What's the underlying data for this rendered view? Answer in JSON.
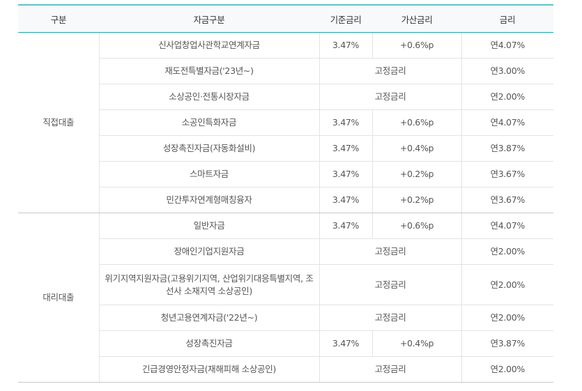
{
  "headers": {
    "category": "구분",
    "fund": "자금구분",
    "base_rate": "기준금리",
    "add_rate": "가산금리",
    "rate": "금리"
  },
  "groups": [
    {
      "name": "직접대출",
      "rows": [
        {
          "fund": "신사업창업사관학교연계자금",
          "base": "3.47%",
          "add": "+0.6%p",
          "rate": "연4.07%"
        },
        {
          "fund": "재도전특별자금('23년~)",
          "fixed": "고정금리",
          "rate": "연3.00%"
        },
        {
          "fund": "소상공인·전통시장자금",
          "fixed": "고정금리",
          "rate": "연2.00%"
        },
        {
          "fund": "소공인특화자금",
          "base": "3.47%",
          "add": "+0.6%p",
          "rate": "연4.07%"
        },
        {
          "fund": "성장촉진자금(자동화설비)",
          "base": "3.47%",
          "add": "+0.4%p",
          "rate": "연3.87%"
        },
        {
          "fund": "스마트자금",
          "base": "3.47%",
          "add": "+0.2%p",
          "rate": "연3.67%"
        },
        {
          "fund": "민간투자연계형매칭융자",
          "base": "3.47%",
          "add": "+0.2%p",
          "rate": "연3.67%"
        }
      ]
    },
    {
      "name": "대리대출",
      "rows": [
        {
          "fund": "일반자금",
          "base": "3.47%",
          "add": "+0.6%p",
          "rate": "연4.07%"
        },
        {
          "fund": "장애인기업지원자금",
          "fixed": "고정금리",
          "rate": "연2.00%"
        },
        {
          "fund": "위기지역지원자금(고용위기지역, 산업위기대응특별지역, 조선사 소재지역 소상공인)",
          "fixed": "고정금리",
          "rate": "연2.00%"
        },
        {
          "fund": "청년고용연계자금('22년~)",
          "fixed": "고정금리",
          "rate": "연2.00%"
        },
        {
          "fund": "성장촉진자금",
          "base": "3.47%",
          "add": "+0.4%p",
          "rate": "연3.87%"
        },
        {
          "fund": "긴급경영안정자금(재해피해 소상공인)",
          "fixed": "고정금리",
          "rate": "연2.00%"
        }
      ]
    }
  ]
}
